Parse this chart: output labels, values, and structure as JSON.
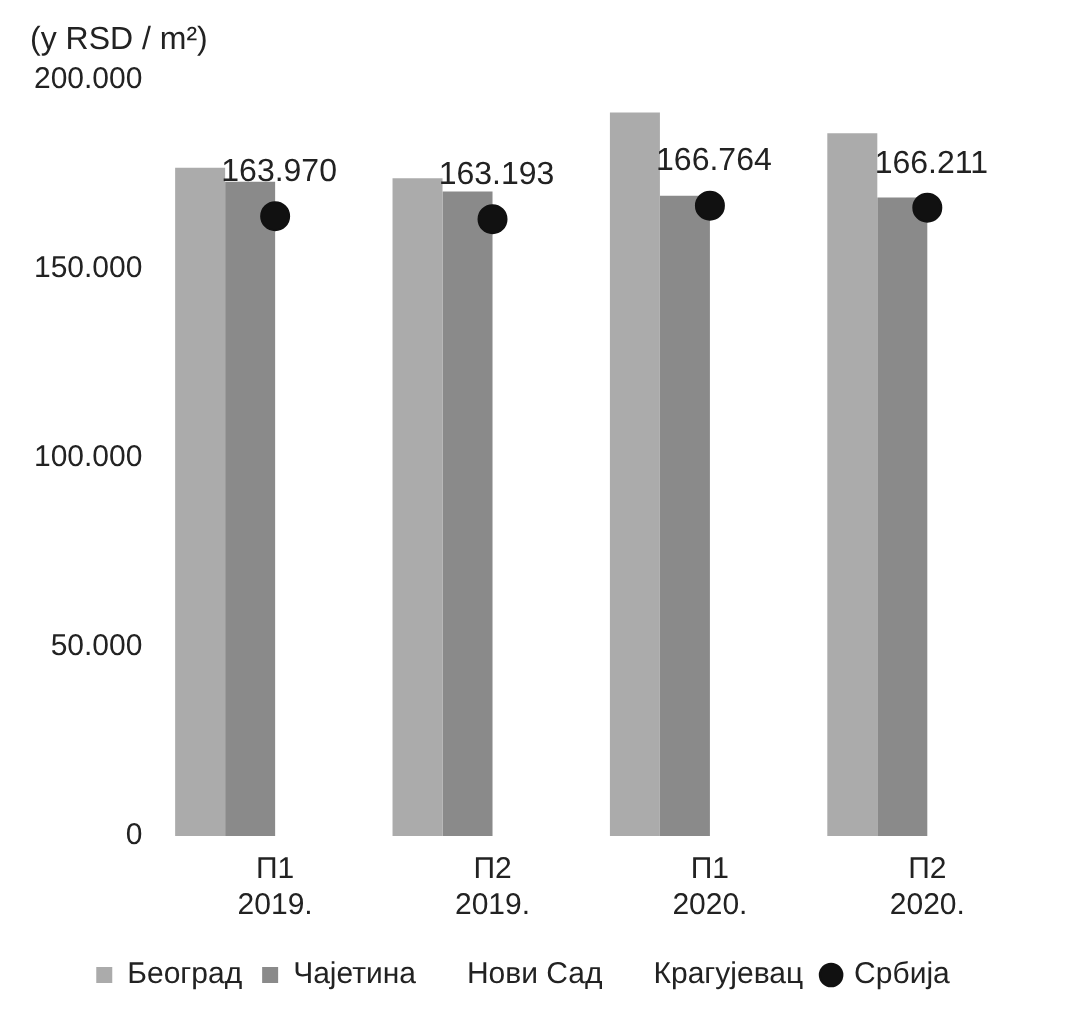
{
  "chart_data": {
    "type": "bar",
    "ylabel": "(у RSD / m²)",
    "categories": [
      "П1 2019.",
      "П2 2019.",
      "П1 2020.",
      "П2 2020."
    ],
    "series": [
      {
        "name": "Београд",
        "color": "#ababab",
        "values": [
          176800,
          174000,
          191400,
          185900
        ]
      },
      {
        "name": "Чајетина",
        "color": "#8a8a8a",
        "values": [
          173100,
          170500,
          169400,
          168900
        ]
      },
      {
        "name": "Нови Сад",
        "values": [
          null,
          null,
          null,
          null
        ]
      },
      {
        "name": "Крагујевац",
        "values": [
          null,
          null,
          null,
          null
        ]
      },
      {
        "name": "Србија",
        "type": "scatter",
        "color": "#111111",
        "marker": "circle",
        "values": [
          163970,
          163193,
          166764,
          166211
        ],
        "value_labels": [
          "163.970",
          "163.193",
          "166.764",
          "166.211"
        ]
      }
    ],
    "ylim": [
      0,
      200000
    ],
    "yticks": [
      {
        "value": 0,
        "label": "0"
      },
      {
        "value": 50000,
        "label": "50.000"
      },
      {
        "value": 100000,
        "label": "100.000"
      },
      {
        "value": 150000,
        "label": "150.000"
      },
      {
        "value": 200000,
        "label": "200.000"
      }
    ],
    "grid": false,
    "legend": "bottom"
  }
}
